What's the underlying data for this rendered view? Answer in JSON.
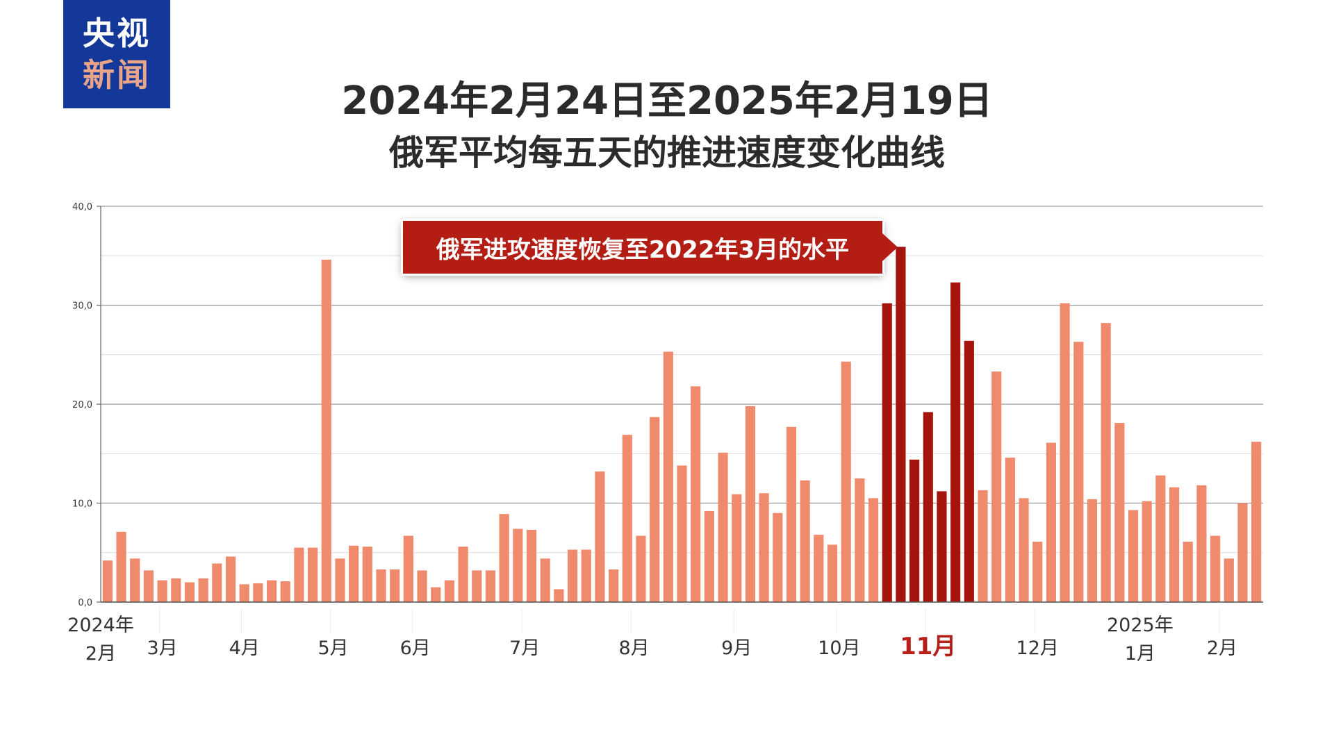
{
  "logo": {
    "line1": "央视",
    "line2": "新闻"
  },
  "title": {
    "line1": "2024年2月24日至2025年2月19日",
    "line2": "俄军平均每五天的推进速度变化曲线"
  },
  "callout": "俄军进攻速度恢复至2022年3月的水平",
  "colors": {
    "bar": "#f08a6d",
    "highlight": "#a5150e",
    "callout": "#b31d14",
    "month_highlight": "#b51f17",
    "logo_bg": "#14379a"
  },
  "chart_data": {
    "type": "bar",
    "ylim": [
      0,
      40
    ],
    "y_ticks": [
      "0,0",
      "10,0",
      "20,0",
      "30,0",
      "40,0"
    ],
    "grid": true,
    "month_labels": [
      {
        "year": "2024年",
        "month": "2月",
        "bar": 0
      },
      {
        "month": "3月",
        "bar": 4.5
      },
      {
        "month": "4月",
        "bar": 10.5
      },
      {
        "month": "5月",
        "bar": 17
      },
      {
        "month": "6月",
        "bar": 23
      },
      {
        "month": "7月",
        "bar": 31
      },
      {
        "month": "8月",
        "bar": 39
      },
      {
        "month": "9月",
        "bar": 46.5
      },
      {
        "month": "10月",
        "bar": 54
      },
      {
        "month": "11月",
        "bar": 60.5,
        "highlight": true
      },
      {
        "month": "12月",
        "bar": 68.5
      },
      {
        "year": "2025年",
        "month": "1月",
        "bar": 76
      },
      {
        "month": "2月",
        "bar": 82
      }
    ],
    "values": [
      4.2,
      7.1,
      4.4,
      3.2,
      2.2,
      2.4,
      2.0,
      2.4,
      3.9,
      4.6,
      1.8,
      1.9,
      2.2,
      2.1,
      5.5,
      5.5,
      34.6,
      4.4,
      5.7,
      5.6,
      3.3,
      3.3,
      6.7,
      3.2,
      1.5,
      2.2,
      5.6,
      3.2,
      3.2,
      8.9,
      7.4,
      7.3,
      4.4,
      1.3,
      5.3,
      5.3,
      13.2,
      3.3,
      16.9,
      6.7,
      18.7,
      25.3,
      13.8,
      21.8,
      9.2,
      15.1,
      10.9,
      19.8,
      11.0,
      9.0,
      17.7,
      12.3,
      6.8,
      5.8,
      24.3,
      12.5,
      10.5,
      30.2,
      35.9,
      14.4,
      19.2,
      11.2,
      32.3,
      26.4,
      11.3,
      23.3,
      14.6,
      10.5,
      6.1,
      16.1,
      30.2,
      26.3,
      10.4,
      28.2,
      18.1,
      9.3,
      10.2,
      12.8,
      11.6,
      6.1,
      11.8,
      6.7,
      4.4,
      10.0,
      16.2
    ],
    "highlighted_bars": [
      57,
      58,
      59,
      60,
      61,
      62,
      63
    ]
  }
}
